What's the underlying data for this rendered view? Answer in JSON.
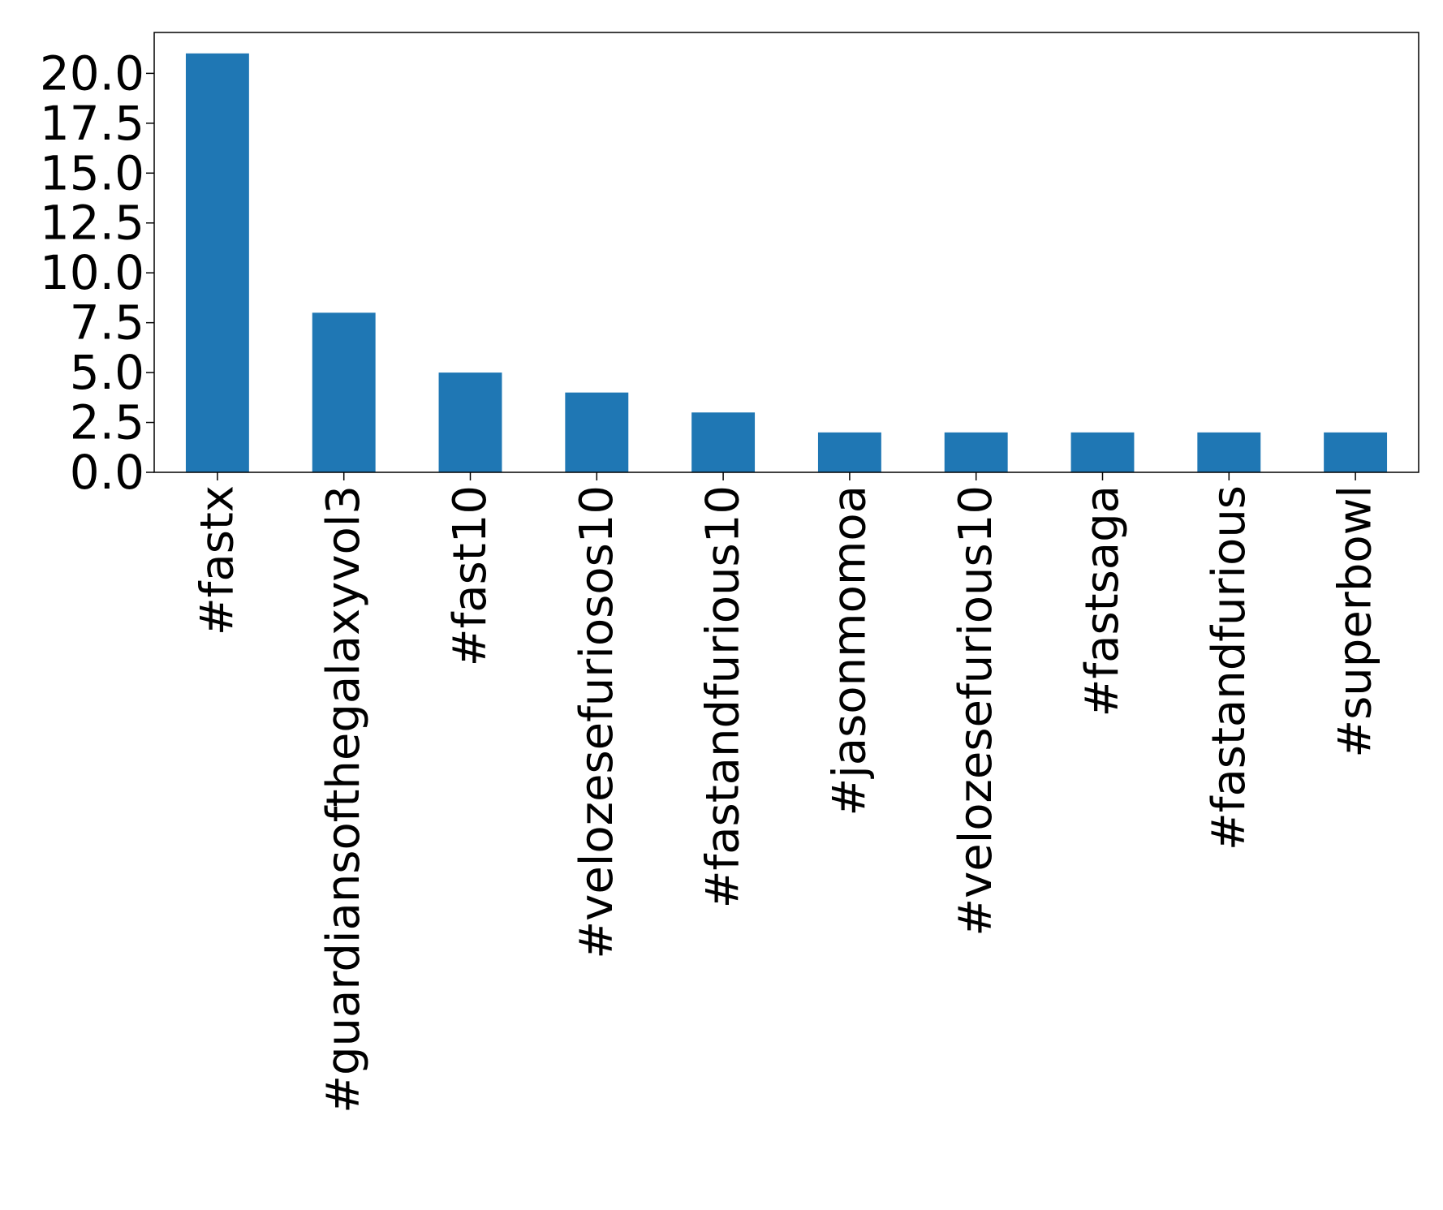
{
  "chart_data": {
    "type": "bar",
    "title": "",
    "xlabel": "",
    "ylabel": "",
    "categories": [
      "#fastx",
      "#guardiansofthegalaxyvol3",
      "#fast10",
      "#velozesefuriosos10",
      "#fastandfurious10",
      "#jasonmomoa",
      "#velozesefurious10",
      "#fastsaga",
      "#fastandfurious",
      "#superbowl"
    ],
    "values": [
      21,
      8,
      5,
      4,
      3,
      2,
      2,
      2,
      2,
      2
    ],
    "ylim": [
      0,
      22.05
    ],
    "yticks": [
      0.0,
      2.5,
      5.0,
      7.5,
      10.0,
      12.5,
      15.0,
      17.5,
      20.0
    ],
    "ytick_labels": [
      "0.0",
      "2.5",
      "5.0",
      "7.5",
      "10.0",
      "12.5",
      "15.0",
      "17.5",
      "20.0"
    ],
    "bar_color": "#1f77b4",
    "grid": false,
    "legend": "none"
  }
}
